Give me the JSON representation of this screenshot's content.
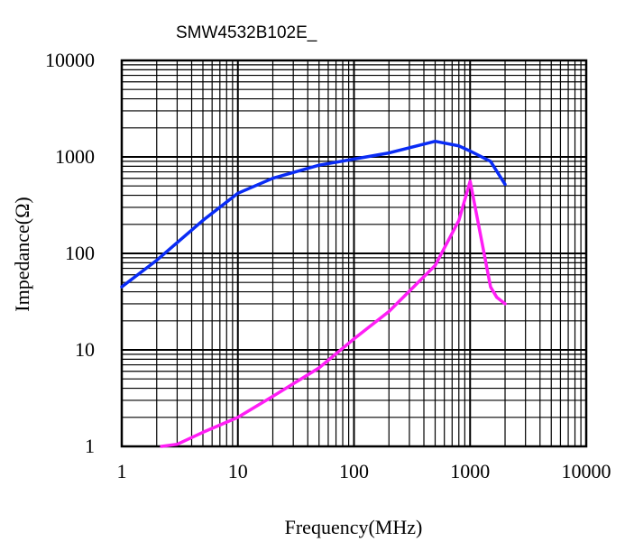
{
  "chart_data": {
    "type": "line",
    "title": "SMW4532B102E_",
    "xlabel": "Frequency(MHz)",
    "ylabel": "Impedance(Ω)",
    "xscale": "log",
    "yscale": "log",
    "xlim": [
      1,
      10000
    ],
    "ylim": [
      1,
      10000
    ],
    "xticks": [
      "1",
      "10",
      "100",
      "1000",
      "10000"
    ],
    "yticks": [
      "1",
      "10",
      "100",
      "1000",
      "10000"
    ],
    "grid": true,
    "legend": "none",
    "series": [
      {
        "color": "#0a2cf5",
        "points": [
          [
            1,
            45
          ],
          [
            2,
            85
          ],
          [
            5,
            220
          ],
          [
            10,
            420
          ],
          [
            20,
            600
          ],
          [
            50,
            820
          ],
          [
            100,
            950
          ],
          [
            200,
            1100
          ],
          [
            500,
            1450
          ],
          [
            800,
            1300
          ],
          [
            1000,
            1150
          ],
          [
            1500,
            900
          ],
          [
            2000,
            520
          ]
        ]
      },
      {
        "color": "#ff1ef5",
        "points": [
          [
            2.2,
            1
          ],
          [
            3,
            1.05
          ],
          [
            5,
            1.4
          ],
          [
            10,
            2
          ],
          [
            20,
            3.3
          ],
          [
            50,
            6.5
          ],
          [
            100,
            13
          ],
          [
            200,
            25
          ],
          [
            500,
            75
          ],
          [
            800,
            220
          ],
          [
            1000,
            560
          ],
          [
            1500,
            45
          ],
          [
            1700,
            35
          ],
          [
            2000,
            30
          ]
        ]
      }
    ]
  }
}
